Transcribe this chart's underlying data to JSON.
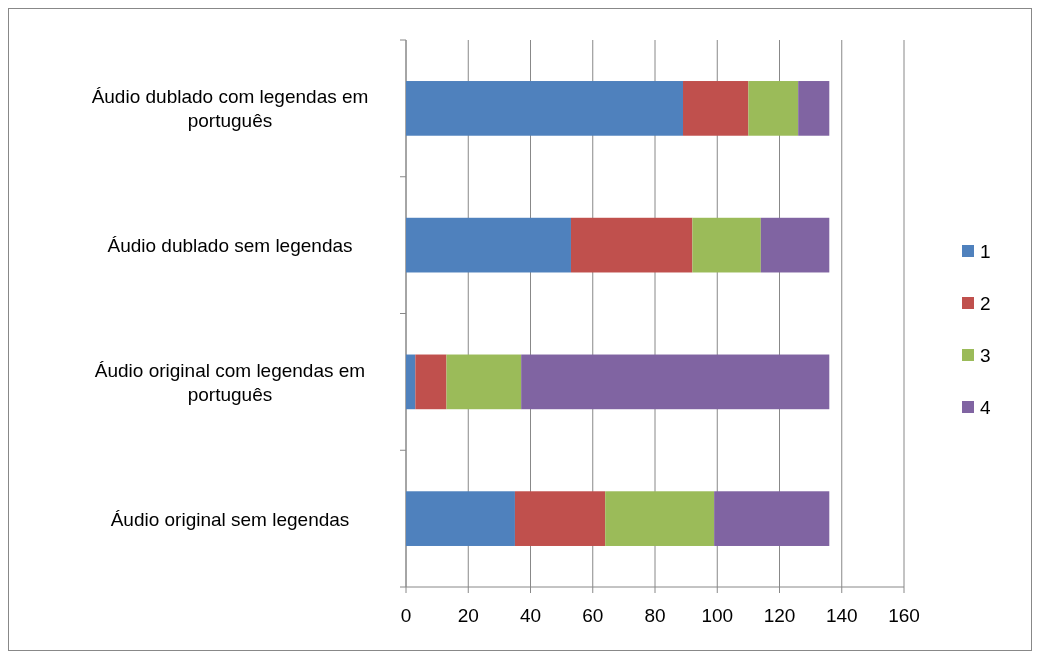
{
  "chart_data": {
    "type": "bar",
    "orientation": "horizontal",
    "stacked": true,
    "categories": [
      "Áudio dublado com legendas em português",
      "Áudio dublado sem legendas",
      "Áudio original com legendas em português",
      "Áudio original sem legendas"
    ],
    "series": [
      {
        "name": "1",
        "color": "#4f81bd",
        "values": [
          89,
          53,
          3,
          35
        ]
      },
      {
        "name": "2",
        "color": "#c0504d",
        "values": [
          21,
          39,
          10,
          29
        ]
      },
      {
        "name": "3",
        "color": "#9bbb59",
        "values": [
          16,
          22,
          24,
          35
        ]
      },
      {
        "name": "4",
        "color": "#8064a2",
        "values": [
          10,
          22,
          99,
          37
        ]
      }
    ],
    "xlim": [
      0,
      160
    ],
    "xticks": [
      0,
      20,
      40,
      60,
      80,
      100,
      120,
      140,
      160
    ],
    "grid": "x",
    "legend": "right"
  }
}
